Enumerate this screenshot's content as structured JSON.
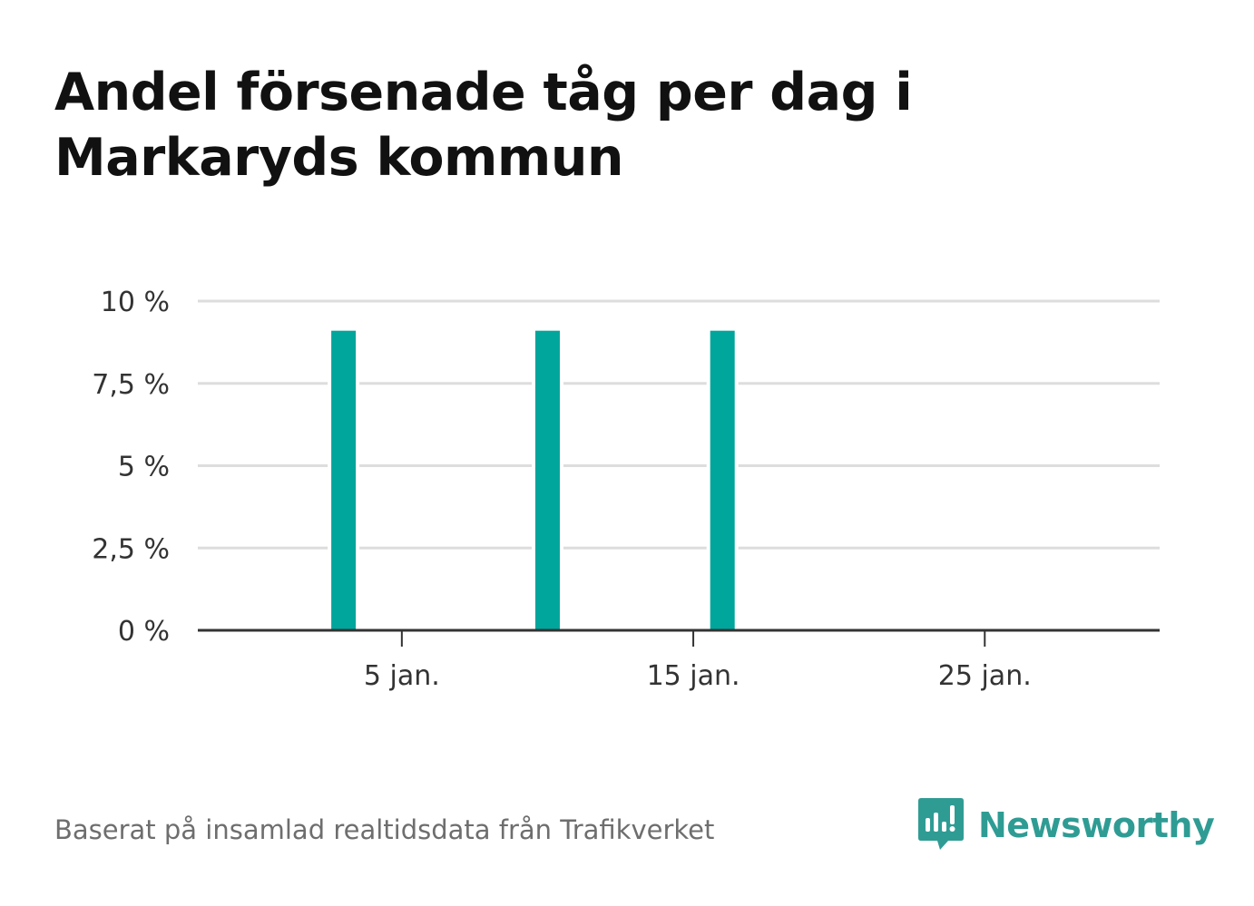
{
  "title_lines": [
    "Andel försenade tåg per dag i",
    "Markaryds kommun"
  ],
  "source": "Baserat på insamlad realtidsdata från Trafikverket",
  "logo": {
    "text": "Newsworthy",
    "icon": "newsworthy-logo-icon",
    "color": "#2f9c94"
  },
  "colors": {
    "bar": "#00a59b",
    "grid": "#dddddd",
    "axis": "#333333"
  },
  "chart_data": {
    "type": "bar",
    "x": [
      "2021-01-03",
      "2021-01-10",
      "2021-01-16"
    ],
    "values": [
      9.1,
      9.1,
      9.1
    ],
    "xlim": [
      "2020-12-29",
      "2021-01-31"
    ],
    "ylim": [
      0,
      10
    ],
    "yticks": [
      0,
      2.5,
      5,
      7.5,
      10
    ],
    "ytick_labels": [
      "0 %",
      "2,5 %",
      "5 %",
      "7,5 %",
      "10 %"
    ],
    "xticks": [
      "2021-01-05",
      "2021-01-15",
      "2021-01-25"
    ],
    "xtick_labels": [
      "5 jan.",
      "15 jan.",
      "25 jan."
    ],
    "grid": true,
    "xlabel": "",
    "ylabel": ""
  }
}
